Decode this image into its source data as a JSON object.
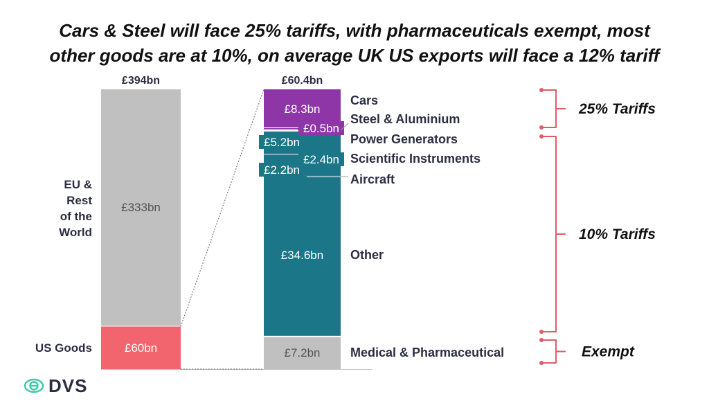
{
  "title_line1": "Cars & Steel will face 25% tariffs, with pharmaceuticals exempt, most",
  "title_line2": "other goods are at 10%, on average UK US exports will face a 12% tariff",
  "logo_text": "DVS",
  "colors": {
    "grey": "#c0c0c0",
    "us_goods": "#f2646e",
    "cars_steel": "#8e35a7",
    "ten_pct": "#1b7688",
    "bracket": "#e15b67",
    "text": "#2b2d42",
    "logo_icon": "#3cc9a5"
  },
  "chart_data": {
    "type": "bar",
    "stacked": true,
    "bars": [
      {
        "total_label": "£394bn",
        "total": 394,
        "segments": [
          {
            "name": "US Goods",
            "value": 60,
            "label": "£60bn",
            "category_label": "US Goods",
            "color": "#f2646e"
          },
          {
            "name": "EU & Rest of the World",
            "value": 333,
            "label": "£333bn",
            "category_label": [
              "EU &",
              "Rest",
              "of the",
              "World"
            ],
            "color": "#c0c0c0"
          }
        ]
      },
      {
        "total_label": "£60.4bn",
        "total": 60.4,
        "segments": [
          {
            "name": "Medical & Pharmaceutical",
            "value": 7.2,
            "label": "£7.2bn",
            "color": "#c0c0c0"
          },
          {
            "name": "Other",
            "value": 34.6,
            "label": "£34.6bn",
            "color": "#1b7688"
          },
          {
            "name": "Aircraft",
            "value": 2.2,
            "label": "£2.2bn",
            "color": "#1b7688"
          },
          {
            "name": "Scientific Instruments",
            "value": 2.4,
            "label": "£2.4bn",
            "color": "#1b7688"
          },
          {
            "name": "Power Generators",
            "value": 5.2,
            "label": "£5.2bn",
            "color": "#1b7688"
          },
          {
            "name": "Steel & Aluminium",
            "value": 0.5,
            "label": "£0.5bn",
            "color": "#8e35a7"
          },
          {
            "name": "Cars",
            "value": 8.3,
            "label": "£8.3bn",
            "color": "#8e35a7"
          }
        ]
      }
    ],
    "tariff_groups": [
      {
        "label": "25% Tariffs",
        "rate": 25,
        "members": [
          "Cars",
          "Steel & Aluminium"
        ]
      },
      {
        "label": "10% Tariffs",
        "rate": 10,
        "members": [
          "Power Generators",
          "Scientific Instruments",
          "Aircraft",
          "Other"
        ]
      },
      {
        "label": "Exempt",
        "rate": 0,
        "members": [
          "Medical & Pharmaceutical"
        ]
      }
    ]
  }
}
